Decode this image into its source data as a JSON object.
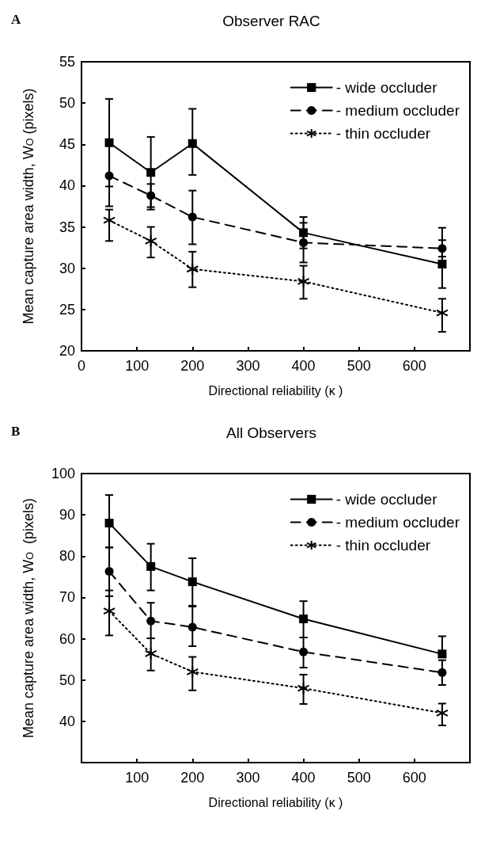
{
  "chart_data": [
    {
      "type": "line",
      "title": "Observer RAC",
      "annotations": [
        "A"
      ],
      "xlabel": "Directional reliability (κ )",
      "ylabel": "Mean capture area width, W$_{O}$ (pixels)",
      "xlim": [
        0,
        700
      ],
      "xticks": [
        0,
        100,
        200,
        300,
        400,
        500,
        600
      ],
      "ylim": [
        20,
        55
      ],
      "yticks": [
        20,
        25,
        30,
        35,
        40,
        45,
        50,
        55
      ],
      "grid": false,
      "legend": "top right",
      "x": [
        50,
        125,
        200,
        400,
        650
      ],
      "series": [
        {
          "name": "- wide occluder",
          "color": "#000000",
          "marker": "square",
          "line_style": "solid",
          "values": [
            45.2,
            41.6,
            45.1,
            34.3,
            30.5
          ],
          "errors": [
            [
              39.9,
              50.5
            ],
            [
              37.1,
              45.9
            ],
            [
              41.3,
              49.3
            ],
            [
              32.4,
              36.2
            ],
            [
              27.6,
              34.9
            ]
          ]
        },
        {
          "name": "- medium occluder",
          "color": "#000000",
          "marker": "circle",
          "line_style": "dashed",
          "values": [
            41.2,
            38.8,
            36.2,
            33.1,
            32.4
          ],
          "errors": [
            [
              37.5,
              44.9
            ],
            [
              37.4,
              40.2
            ],
            [
              32.9,
              39.4
            ],
            [
              30.7,
              35.5
            ],
            [
              31.4,
              33.4
            ]
          ]
        },
        {
          "name": "- thin occluder",
          "color": "#000000",
          "marker": "cross",
          "line_style": "dotted",
          "values": [
            35.8,
            33.3,
            29.9,
            28.4,
            24.6
          ],
          "errors": [
            [
              33.3,
              37.1
            ],
            [
              31.3,
              35.0
            ],
            [
              27.7,
              32.0
            ],
            [
              26.3,
              30.3
            ],
            [
              22.3,
              26.3
            ]
          ]
        }
      ]
    },
    {
      "type": "line",
      "title": "All Observers",
      "annotations": [
        "B"
      ],
      "xlabel": "Directional reliability (κ )",
      "ylabel": "Mean capture area width, W$_{O}$  (pixels)",
      "xlim": [
        0,
        700
      ],
      "xticks": [
        100,
        200,
        300,
        400,
        500,
        600
      ],
      "ylim": [
        30,
        100
      ],
      "yticks": [
        40,
        50,
        60,
        70,
        80,
        90,
        100
      ],
      "grid": false,
      "legend": "top right",
      "x": [
        50,
        125,
        200,
        400,
        650
      ],
      "series": [
        {
          "name": "- wide occluder",
          "color": "#000000",
          "marker": "square",
          "line_style": "solid",
          "values": [
            88.0,
            77.5,
            73.8,
            64.8,
            56.3
          ],
          "errors": [
            [
              82.1,
              94.8
            ],
            [
              71.7,
              83.0
            ],
            [
              67.8,
              79.5
            ],
            [
              60.3,
              69.1
            ],
            [
              56.3,
              60.6
            ]
          ]
        },
        {
          "name": "- medium occluder",
          "color": "#000000",
          "marker": "circle",
          "line_style": "dashed",
          "values": [
            76.3,
            64.3,
            62.8,
            56.8,
            51.8
          ],
          "errors": [
            [
              70.3,
              82.1
            ],
            [
              60.1,
              68.7
            ],
            [
              58.2,
              68.0
            ],
            [
              53.0,
              60.3
            ],
            [
              48.8,
              54.8
            ]
          ]
        },
        {
          "name": "- thin occluder",
          "color": "#000000",
          "marker": "cross",
          "line_style": "dotted",
          "values": [
            66.7,
            56.4,
            52.0,
            48.0,
            42.0
          ],
          "errors": [
            [
              60.8,
              71.7
            ],
            [
              52.3,
              60.1
            ],
            [
              47.5,
              55.6
            ],
            [
              44.2,
              51.3
            ],
            [
              39.0,
              44.3
            ]
          ]
        }
      ]
    }
  ]
}
